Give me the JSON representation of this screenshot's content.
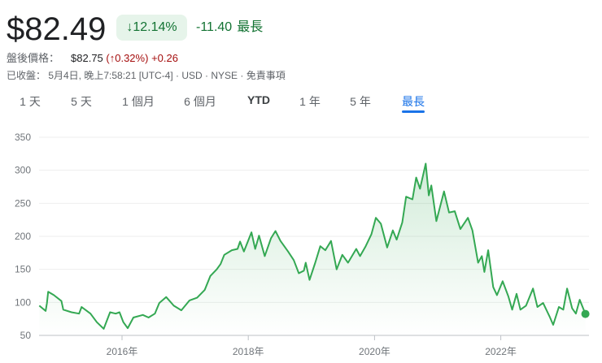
{
  "quote": {
    "price": "$82.49",
    "change_pct": "12.14%",
    "change_arrow": "↓",
    "change_abs": "-11.40",
    "range_label": "最長"
  },
  "after_hours": {
    "label": "盤後價格：",
    "price": "$82.75",
    "pct": "(↑0.32%)",
    "abs": "+0.26"
  },
  "closed": "已收盤： 5月4日, 晚上7:58:21 [UTC-4] · USD · NYSE · 免責事項",
  "tabs": [
    {
      "label": "1 天"
    },
    {
      "label": "5 天"
    },
    {
      "label": "1 個月"
    },
    {
      "label": "6 個月"
    },
    {
      "label": "YTD"
    },
    {
      "label": "1 年"
    },
    {
      "label": "5 年"
    },
    {
      "label": "最長",
      "active": true
    }
  ],
  "colors": {
    "up_green": "#137333",
    "line": "#34a853",
    "down_red": "#a50e0e",
    "active_tab": "#1a73e8"
  },
  "chart_data": {
    "type": "area",
    "ylim": [
      50,
      350
    ],
    "yticks": [
      50,
      100,
      150,
      200,
      250,
      300,
      350
    ],
    "xticks": [
      {
        "x": 2016,
        "label": "2016年"
      },
      {
        "x": 2018,
        "label": "2018年"
      },
      {
        "x": 2020,
        "label": "2020年"
      },
      {
        "x": 2022,
        "label": "2022年"
      }
    ],
    "grid": true,
    "series": [
      {
        "points": [
          [
            2014.69,
            95
          ],
          [
            2014.79,
            87
          ],
          [
            2014.81,
            99
          ],
          [
            2014.83,
            116
          ],
          [
            2014.92,
            111
          ],
          [
            2015.04,
            102
          ],
          [
            2015.07,
            89
          ],
          [
            2015.2,
            85
          ],
          [
            2015.32,
            83
          ],
          [
            2015.36,
            93
          ],
          [
            2015.5,
            83
          ],
          [
            2015.6,
            70
          ],
          [
            2015.71,
            60
          ],
          [
            2015.81,
            85
          ],
          [
            2015.9,
            83
          ],
          [
            2015.96,
            85
          ],
          [
            2016.02,
            70
          ],
          [
            2016.09,
            61
          ],
          [
            2016.18,
            77
          ],
          [
            2016.33,
            81
          ],
          [
            2016.42,
            77
          ],
          [
            2016.52,
            83
          ],
          [
            2016.59,
            99
          ],
          [
            2016.7,
            108
          ],
          [
            2016.82,
            95
          ],
          [
            2016.94,
            88
          ],
          [
            2017.07,
            103
          ],
          [
            2017.19,
            107
          ],
          [
            2017.31,
            119
          ],
          [
            2017.4,
            140
          ],
          [
            2017.5,
            150
          ],
          [
            2017.56,
            158
          ],
          [
            2017.62,
            172
          ],
          [
            2017.74,
            179
          ],
          [
            2017.83,
            181
          ],
          [
            2017.87,
            192
          ],
          [
            2017.93,
            177
          ],
          [
            2018.05,
            206
          ],
          [
            2018.11,
            181
          ],
          [
            2018.17,
            201
          ],
          [
            2018.26,
            170
          ],
          [
            2018.36,
            197
          ],
          [
            2018.43,
            208
          ],
          [
            2018.51,
            193
          ],
          [
            2018.63,
            177
          ],
          [
            2018.72,
            164
          ],
          [
            2018.8,
            144
          ],
          [
            2018.88,
            148
          ],
          [
            2018.91,
            160
          ],
          [
            2018.97,
            134
          ],
          [
            2019.06,
            160
          ],
          [
            2019.14,
            185
          ],
          [
            2019.22,
            179
          ],
          [
            2019.31,
            193
          ],
          [
            2019.4,
            150
          ],
          [
            2019.49,
            172
          ],
          [
            2019.58,
            160
          ],
          [
            2019.71,
            181
          ],
          [
            2019.77,
            170
          ],
          [
            2019.86,
            185
          ],
          [
            2019.95,
            203
          ],
          [
            2020.02,
            228
          ],
          [
            2020.1,
            219
          ],
          [
            2020.2,
            183
          ],
          [
            2020.29,
            209
          ],
          [
            2020.35,
            195
          ],
          [
            2020.44,
            221
          ],
          [
            2020.5,
            260
          ],
          [
            2020.6,
            256
          ],
          [
            2020.66,
            289
          ],
          [
            2020.72,
            272
          ],
          [
            2020.81,
            310
          ],
          [
            2020.86,
            262
          ],
          [
            2020.9,
            277
          ],
          [
            2020.98,
            223
          ],
          [
            2021.1,
            268
          ],
          [
            2021.18,
            236
          ],
          [
            2021.27,
            238
          ],
          [
            2021.36,
            211
          ],
          [
            2021.48,
            228
          ],
          [
            2021.55,
            209
          ],
          [
            2021.64,
            160
          ],
          [
            2021.7,
            170
          ],
          [
            2021.74,
            146
          ],
          [
            2021.8,
            179
          ],
          [
            2021.88,
            123
          ],
          [
            2021.94,
            111
          ],
          [
            2022.03,
            132
          ],
          [
            2022.12,
            109
          ],
          [
            2022.18,
            89
          ],
          [
            2022.25,
            113
          ],
          [
            2022.31,
            89
          ],
          [
            2022.4,
            95
          ],
          [
            2022.51,
            121
          ],
          [
            2022.58,
            93
          ],
          [
            2022.67,
            99
          ],
          [
            2022.77,
            79
          ],
          [
            2022.83,
            66
          ],
          [
            2022.92,
            93
          ],
          [
            2022.99,
            89
          ],
          [
            2023.05,
            121
          ],
          [
            2023.13,
            91
          ],
          [
            2023.19,
            83
          ],
          [
            2023.25,
            104
          ],
          [
            2023.34,
            82.49
          ]
        ]
      }
    ]
  }
}
